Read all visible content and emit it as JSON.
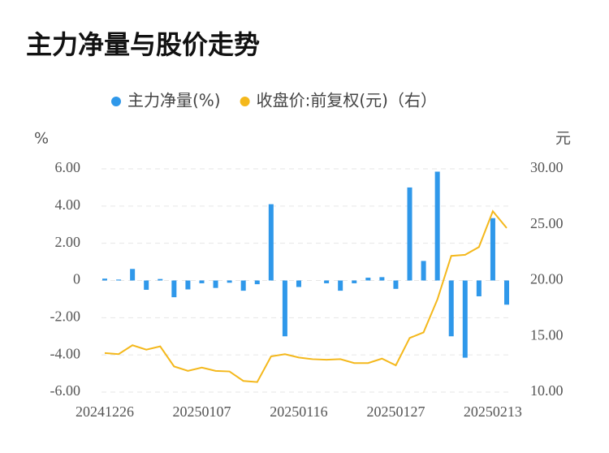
{
  "chart_data": {
    "type": "bar_line",
    "title": "主力净量与股价走势",
    "ylabel": "%",
    "y2label": "元",
    "categories": [
      "20241226",
      null,
      null,
      null,
      null,
      null,
      null,
      "20250107",
      null,
      null,
      null,
      null,
      null,
      null,
      "20250116",
      null,
      null,
      null,
      null,
      null,
      null,
      "20250127",
      null,
      null,
      null,
      null,
      null,
      null,
      "20250213",
      null
    ],
    "series": [
      {
        "name": "主力净量(%)",
        "type": "bar",
        "color": "#2f98ea",
        "axis": "y",
        "values": [
          0.1,
          0.05,
          0.62,
          -0.5,
          0.08,
          -0.9,
          -0.48,
          -0.15,
          -0.4,
          -0.12,
          -0.55,
          -0.2,
          4.1,
          -3.0,
          -0.35,
          0,
          -0.15,
          -0.55,
          -0.15,
          0.15,
          0.18,
          -0.45,
          5.0,
          1.05,
          5.85,
          -3.0,
          -4.15,
          -0.85,
          3.35,
          -1.3
        ]
      },
      {
        "name": "收盘价:前复权(元)（右）",
        "type": "line",
        "color": "#f4b81c",
        "axis": "y2",
        "values": [
          13.5,
          13.4,
          14.2,
          13.8,
          14.1,
          12.3,
          11.9,
          12.2,
          11.9,
          11.85,
          11.0,
          10.9,
          13.2,
          13.4,
          13.1,
          12.95,
          12.9,
          12.95,
          12.6,
          12.6,
          13.0,
          12.4,
          14.85,
          15.35,
          18.3,
          22.2,
          22.3,
          23.0,
          26.2,
          24.7
        ]
      }
    ],
    "ylim": [
      -6,
      6
    ],
    "yticks": [
      {
        "value": -6,
        "label": "-6.00"
      },
      {
        "value": -4,
        "label": "-4.00"
      },
      {
        "value": -2,
        "label": "-2.00"
      },
      0,
      {
        "value": 2,
        "label": "2.00"
      },
      {
        "value": 4,
        "label": "4.00"
      },
      {
        "value": 6,
        "label": "6.00"
      }
    ],
    "y2lim": [
      10,
      30
    ],
    "y2ticks": [
      {
        "value": 10,
        "label": "10.00"
      },
      {
        "value": 15,
        "label": "15.00"
      },
      {
        "value": 20,
        "label": "20.00"
      },
      {
        "value": 25,
        "label": "25.00"
      },
      {
        "value": 30,
        "label": "30.00"
      }
    ],
    "grid": true
  }
}
